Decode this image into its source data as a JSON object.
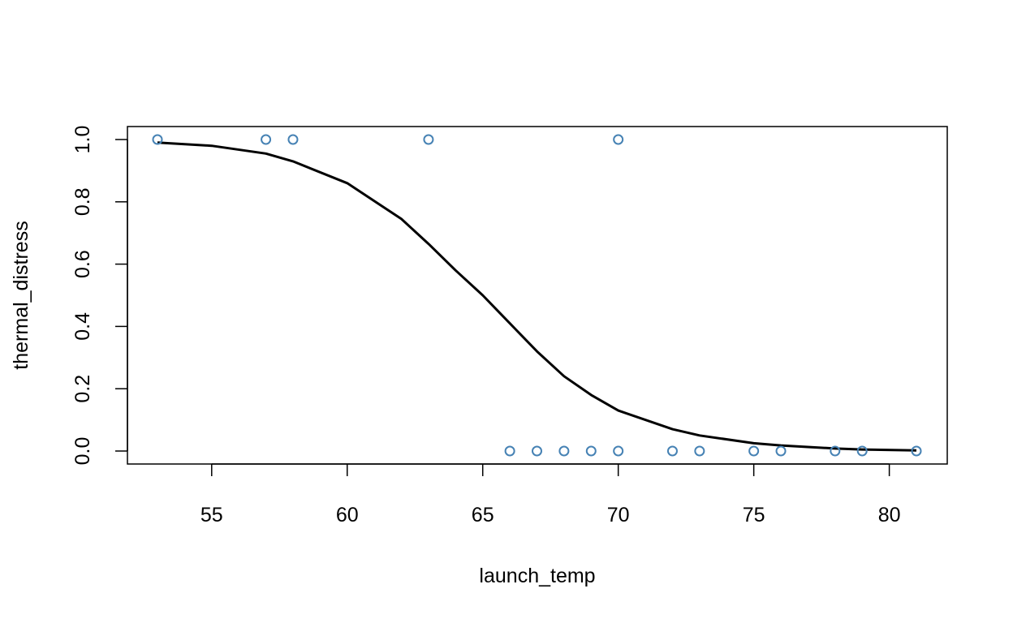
{
  "chart_data": {
    "type": "scatter",
    "title": "",
    "xlabel": "launch_temp",
    "ylabel": "thermal_distress",
    "xlim": [
      53,
      81
    ],
    "ylim": [
      0,
      1
    ],
    "x_ticks": [
      55,
      60,
      65,
      70,
      75,
      80
    ],
    "y_ticks": [
      "0.0",
      "0.2",
      "0.4",
      "0.6",
      "0.8",
      "1.0"
    ],
    "grid": false,
    "point_color": "#4682B4",
    "line_color": "#000000",
    "points": [
      {
        "x": 53,
        "y": 1
      },
      {
        "x": 57,
        "y": 1
      },
      {
        "x": 58,
        "y": 1
      },
      {
        "x": 63,
        "y": 1
      },
      {
        "x": 70,
        "y": 1
      },
      {
        "x": 66,
        "y": 0
      },
      {
        "x": 67,
        "y": 0
      },
      {
        "x": 68,
        "y": 0
      },
      {
        "x": 69,
        "y": 0
      },
      {
        "x": 70,
        "y": 0
      },
      {
        "x": 72,
        "y": 0
      },
      {
        "x": 73,
        "y": 0
      },
      {
        "x": 75,
        "y": 0
      },
      {
        "x": 76,
        "y": 0
      },
      {
        "x": 78,
        "y": 0
      },
      {
        "x": 79,
        "y": 0
      },
      {
        "x": 81,
        "y": 0
      }
    ],
    "fitted_curve": {
      "name": "",
      "x": [
        53,
        55,
        57,
        58,
        60,
        62,
        63,
        64,
        65,
        66,
        67,
        68,
        69,
        70,
        72,
        73,
        75,
        76,
        78,
        79,
        81
      ],
      "y": [
        0.99,
        0.98,
        0.955,
        0.93,
        0.86,
        0.745,
        0.665,
        0.58,
        0.5,
        0.41,
        0.32,
        0.24,
        0.18,
        0.13,
        0.07,
        0.05,
        0.025,
        0.018,
        0.008,
        0.005,
        0.002
      ]
    }
  }
}
